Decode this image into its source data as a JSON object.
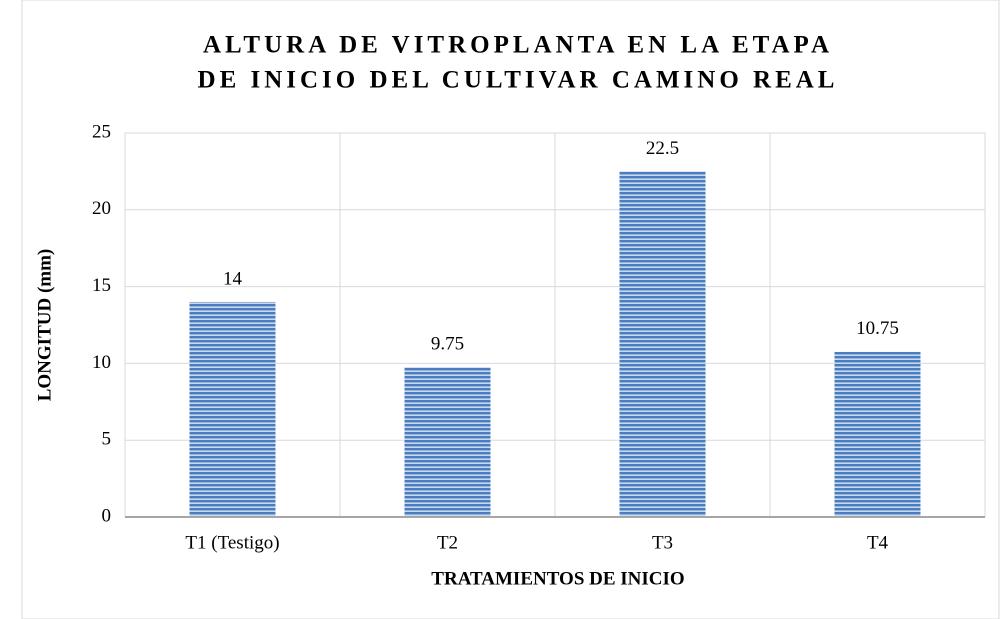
{
  "chart_data": {
    "type": "bar",
    "title": [
      "ALTURA DE VITROPLANTA EN LA ETAPA",
      "DE INICIO DEL CULTIVAR CAMINO REAL"
    ],
    "categories": [
      "T1 (Testigo)",
      "T2",
      "T3",
      "T4"
    ],
    "values": [
      14,
      9.75,
      22.5,
      10.75
    ],
    "color": "#4a7cc0",
    "ylim": [
      0,
      25
    ],
    "yticks": [
      0,
      5,
      10,
      15,
      20,
      25
    ],
    "grid": true,
    "x_label": "TRATAMIENTOS DE INICIO",
    "y_label": "LONGITUD (mm)"
  }
}
